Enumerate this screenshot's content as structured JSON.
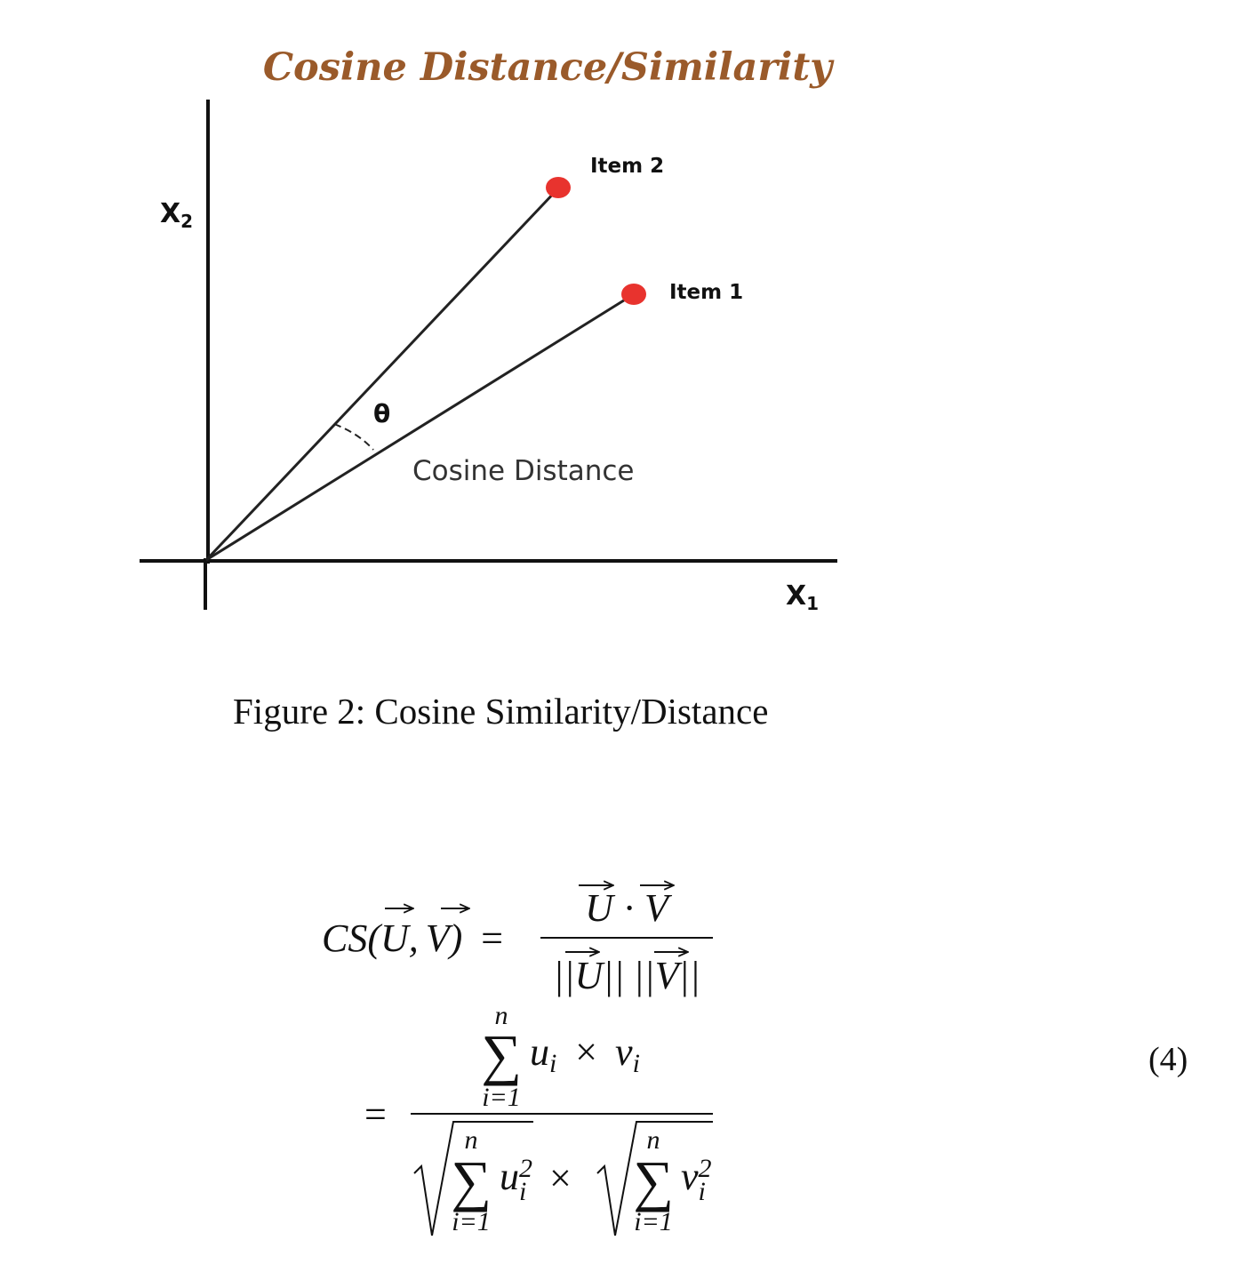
{
  "figure": {
    "title": "Cosine Distance/Similarity",
    "axis_x": {
      "main": "X",
      "sub": "1"
    },
    "axis_y": {
      "main": "X",
      "sub": "2"
    },
    "item1_label": "Item 1",
    "item2_label": "Item 2",
    "angle_label": "θ",
    "distance_label": "Cosine Distance",
    "colors": {
      "title": "#9a5a2a",
      "points": "#e8332e",
      "lines": "#222222"
    }
  },
  "caption": "Figure 2: Cosine Similarity/Distance",
  "equation": {
    "lhs": "CS(U, V) =",
    "numerator_1": "U · V",
    "denominator_1": "||U|| ||V||",
    "sum_upper": "n",
    "sum_lower": "i=1",
    "numerator_2": "u_i × v_i",
    "denominator_2": "√(Σ u_i²) × √(Σ v_i²)",
    "number": "(4)"
  }
}
